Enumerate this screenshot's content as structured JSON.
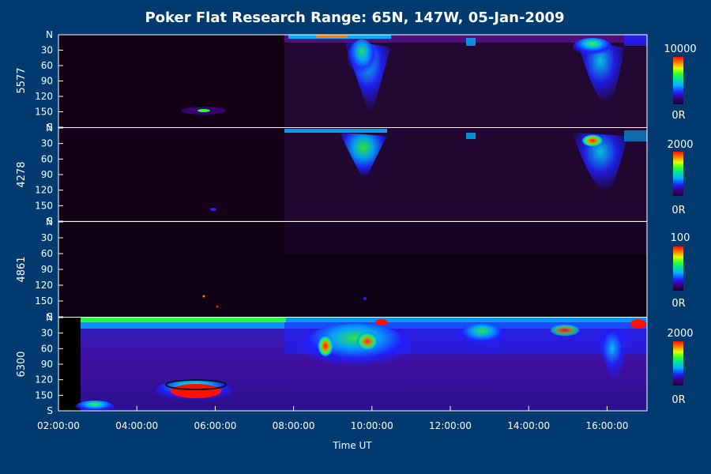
{
  "chart_data": {
    "type": "heatmap",
    "title": "Poker Flat Research Range: 65N, 147W, 05-Jan-2009",
    "xlabel": "Time UT",
    "x_ticks": [
      "02:00:00",
      "04:00:00",
      "06:00:00",
      "08:00:00",
      "10:00:00",
      "12:00:00",
      "14:00:00",
      "16:00:00"
    ],
    "y_ticks": [
      "N",
      "30",
      "60",
      "90",
      "120",
      "150",
      "S"
    ],
    "panels": [
      {
        "ylabel": "5577",
        "scale_max": "10000",
        "scale_min": "0R"
      },
      {
        "ylabel": "4278",
        "scale_max": "2000",
        "scale_min": "0R"
      },
      {
        "ylabel": "4861",
        "scale_max": "100",
        "scale_min": "0R"
      },
      {
        "ylabel": "6300",
        "scale_max": "2000",
        "scale_min": "0R"
      }
    ],
    "colormap": [
      "#1a0033",
      "#3a0070",
      "#2020ff",
      "#00b0ff",
      "#00e0a0",
      "#30ff30",
      "#e0ff00",
      "#ff8000",
      "#ff1000"
    ],
    "background_color": "#003a6e",
    "panel_background": "#120014"
  }
}
